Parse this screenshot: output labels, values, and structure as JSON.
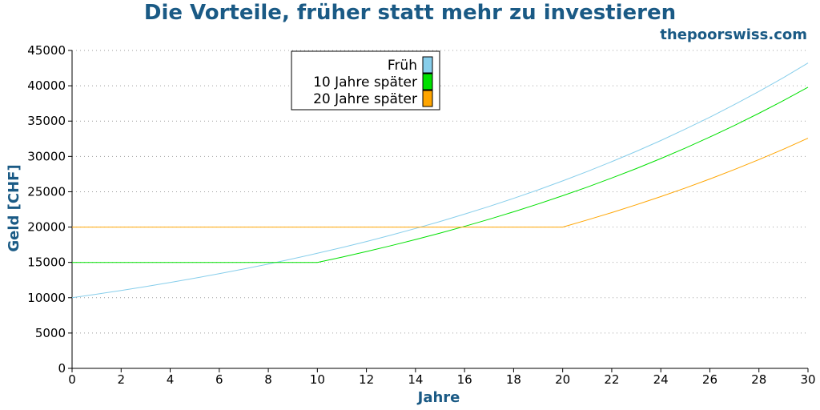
{
  "chart_data": {
    "type": "line",
    "title": "Die Vorteile, früher statt mehr zu investieren",
    "watermark": "thepoorswiss.com",
    "xlabel": "Jahre",
    "ylabel": "Geld [CHF]",
    "xlim": [
      0,
      30
    ],
    "ylim": [
      0,
      45000
    ],
    "xticks": [
      0,
      2,
      4,
      6,
      8,
      10,
      12,
      14,
      16,
      18,
      20,
      22,
      24,
      26,
      28,
      30
    ],
    "yticks": [
      0,
      5000,
      10000,
      15000,
      20000,
      25000,
      30000,
      35000,
      40000,
      45000
    ],
    "grid": "horizontal dotted",
    "legend_position": "top-center",
    "x": [
      0,
      1,
      2,
      3,
      4,
      5,
      6,
      7,
      8,
      9,
      10,
      11,
      12,
      13,
      14,
      15,
      16,
      17,
      18,
      19,
      20,
      21,
      22,
      23,
      24,
      25,
      26,
      27,
      28,
      29,
      30
    ],
    "series": [
      {
        "name": "Früh",
        "color": "#87ceeb",
        "values": [
          10000,
          10500,
          11025,
          11576,
          12155,
          12763,
          13401,
          14071,
          14775,
          15513,
          16289,
          17103,
          17959,
          18856,
          19799,
          20789,
          21829,
          22920,
          24066,
          25270,
          26533,
          27860,
          29253,
          30715,
          32251,
          33864,
          35557,
          37335,
          39201,
          41161,
          43219
        ]
      },
      {
        "name": "10 Jahre später",
        "color": "#00e000",
        "values": [
          15000,
          15000,
          15000,
          15000,
          15000,
          15000,
          15000,
          15000,
          15000,
          15000,
          15000,
          15750,
          16538,
          17364,
          18233,
          19144,
          20101,
          21107,
          22162,
          23270,
          24433,
          25655,
          26938,
          28285,
          29699,
          31184,
          32743,
          34380,
          36099,
          37904,
          39799
        ]
      },
      {
        "name": "20 Jahre später",
        "color": "#ffa500",
        "values": [
          20000,
          20000,
          20000,
          20000,
          20000,
          20000,
          20000,
          20000,
          20000,
          20000,
          20000,
          20000,
          20000,
          20000,
          20000,
          20000,
          20000,
          20000,
          20000,
          20000,
          20000,
          21000,
          22050,
          23153,
          24310,
          25526,
          26802,
          28142,
          29549,
          31027,
          32578
        ]
      }
    ]
  }
}
